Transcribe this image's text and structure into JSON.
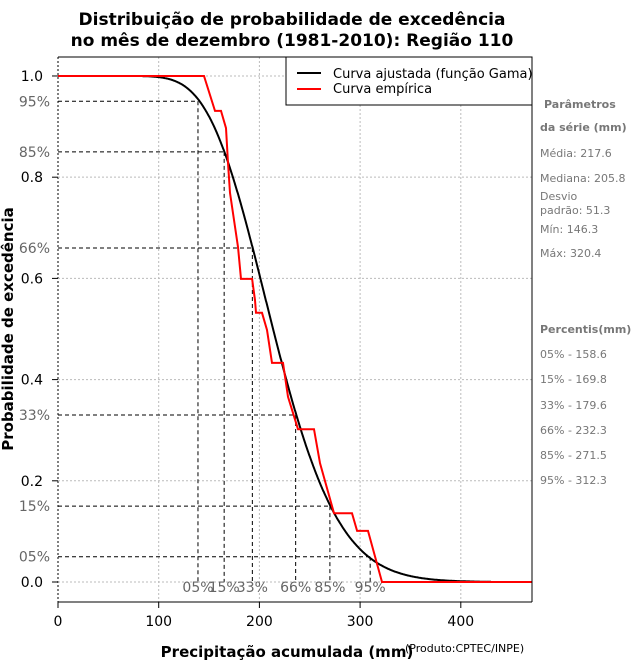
{
  "chart_data": {
    "type": "line",
    "title": [
      "Distribuição de probabilidade de excedência",
      "no mês de dezembro (1981-2010): Região 110"
    ],
    "xlabel": "Precipitação acumulada (mm)",
    "xlabel_note": "(Produto:CPTEC/INPE)",
    "ylabel": "Probabilidade de excedência",
    "xlim": [
      0,
      470.7
    ],
    "ylim": [
      -0.0395,
      1.0375
    ],
    "x_ticks": [
      0,
      100,
      200,
      300,
      400
    ],
    "y_ticks": [
      1.0,
      0.8,
      0.6,
      0.4,
      0.2,
      0.0
    ],
    "y_tick_labels": [
      "1.0",
      "0.8",
      "0.6",
      "0.4",
      "0.2",
      "0.0"
    ],
    "grid": true,
    "legend_position": "top-right",
    "legend": [
      "Curva ajustada (função Gama)",
      "Curva empírica"
    ],
    "colors": {
      "fitted": "#000000",
      "empirical": "#ff0000",
      "pct_text": "#666666"
    },
    "fitted_gamma": {
      "mean": 217.6,
      "sd": 51.3,
      "x_range": [
        84,
        430
      ]
    },
    "empirical": [
      [
        0,
        1.0
      ],
      [
        145.0,
        1.0
      ],
      [
        155.9,
        0.931
      ],
      [
        161.9,
        0.931
      ],
      [
        166.8,
        0.897
      ],
      [
        168.8,
        0.828
      ],
      [
        170.8,
        0.769
      ],
      [
        178.7,
        0.662
      ],
      [
        181.7,
        0.599
      ],
      [
        192.7,
        0.599
      ],
      [
        195.6,
        0.557
      ],
      [
        196.6,
        0.532
      ],
      [
        202.6,
        0.532
      ],
      [
        207.5,
        0.498
      ],
      [
        212.5,
        0.433
      ],
      [
        223.4,
        0.433
      ],
      [
        228.4,
        0.366
      ],
      [
        238.3,
        0.302
      ],
      [
        254.2,
        0.302
      ],
      [
        260.2,
        0.235
      ],
      [
        274.1,
        0.136
      ],
      [
        292.0,
        0.136
      ],
      [
        297.0,
        0.101
      ],
      [
        307.8,
        0.101
      ],
      [
        321.7,
        0.0
      ],
      [
        470.7,
        0.0
      ]
    ],
    "quantile_guides": [
      {
        "y_label": "95%",
        "p": 0.95,
        "x": 139,
        "x_label": "05%"
      },
      {
        "y_label": "85%",
        "p": 0.85,
        "x": 165,
        "x_label": "15%"
      },
      {
        "y_label": "66%",
        "p": 0.66,
        "x": 193,
        "x_label": "33%"
      },
      {
        "y_label": "33%",
        "p": 0.33,
        "x": 236,
        "x_label": "66%"
      },
      {
        "y_label": "15%",
        "p": 0.15,
        "x": 270,
        "x_label": "85%"
      },
      {
        "y_label": "05%",
        "p": 0.05,
        "x": 310,
        "x_label": "95%"
      }
    ]
  },
  "side_panel": {
    "params_title": [
      "Parâmetros",
      "da série (mm)"
    ],
    "params": [
      "Média: 217.6",
      "Mediana: 205.8",
      "Desvio",
      "padrão: 51.3",
      "Mín: 146.3",
      "Máx: 320.4"
    ],
    "percentis_title": "Percentis(mm)",
    "percentis": [
      "05% - 158.6",
      "15% - 169.8",
      "33% - 179.6",
      "66% - 232.3",
      "85% - 271.5",
      "95% - 312.3"
    ]
  }
}
